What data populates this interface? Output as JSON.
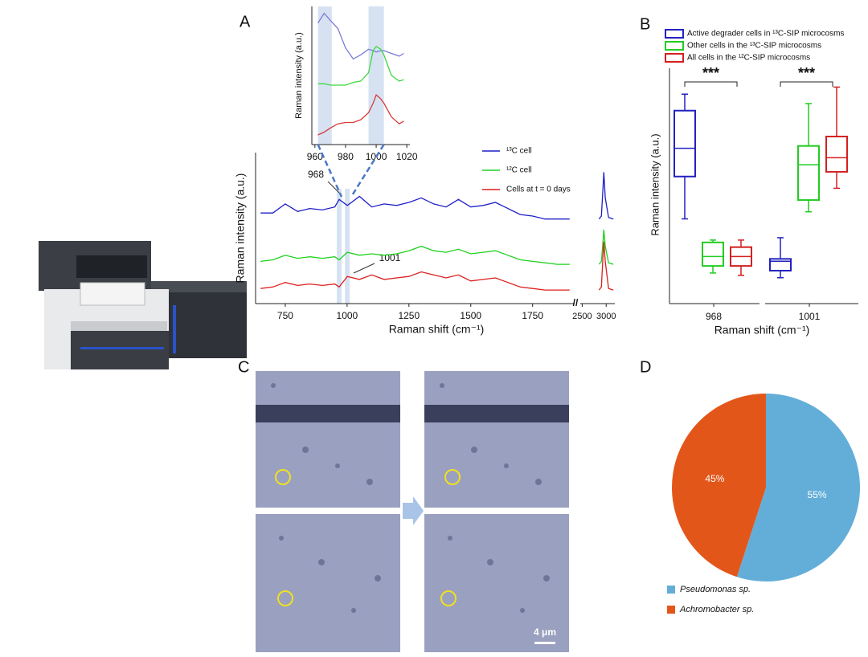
{
  "panels": [
    "A",
    "B",
    "C",
    "D"
  ],
  "scale_bar": "4 μm",
  "chart_data": [
    {
      "type": "line",
      "x_label": "Raman shift (cm⁻¹)",
      "y_label": "Raman intensity (a.u.)",
      "x": [
        650,
        700,
        750,
        800,
        850,
        900,
        950,
        968,
        1001,
        1050,
        1100,
        1150,
        1200,
        1250,
        1300,
        1350,
        1400,
        1450,
        1500,
        1550,
        1600,
        1650,
        1700,
        1750,
        1800,
        1850,
        1900
      ],
      "xlim": [
        630,
        1920
      ],
      "xticks": [
        750,
        1000,
        1250,
        1500,
        1750
      ],
      "ylim": [
        0,
        10
      ],
      "series": [
        {
          "name": "¹³C cell",
          "color": "#1f1fc8",
          "values": [
            6.0,
            6.0,
            6.6,
            6.1,
            6.3,
            6.2,
            6.4,
            6.9,
            6.5,
            7.1,
            6.4,
            6.6,
            6.5,
            6.7,
            7.0,
            6.6,
            6.4,
            6.9,
            6.4,
            6.5,
            6.7,
            6.3,
            5.9,
            5.8,
            5.6,
            5.6,
            5.6
          ]
        },
        {
          "name": "¹²C cell",
          "color": "#1ed21e",
          "values": [
            2.8,
            2.9,
            3.2,
            3.0,
            3.1,
            3.0,
            3.1,
            2.9,
            3.4,
            3.2,
            3.3,
            3.2,
            3.3,
            3.5,
            3.8,
            3.5,
            3.4,
            3.6,
            3.3,
            3.4,
            3.5,
            3.2,
            2.9,
            2.8,
            2.7,
            2.6,
            2.6
          ]
        },
        {
          "name": "Cells at t = 0 days",
          "color": "#dc1e1e",
          "values": [
            1.0,
            1.1,
            1.4,
            1.2,
            1.3,
            1.2,
            1.3,
            1.1,
            1.8,
            1.6,
            1.9,
            1.6,
            1.7,
            1.8,
            2.1,
            1.9,
            1.7,
            1.9,
            1.5,
            1.6,
            1.7,
            1.4,
            1.1,
            1.0,
            0.9,
            0.9,
            0.9
          ]
        }
      ],
      "annotations": [
        {
          "x": 968,
          "text": "968"
        },
        {
          "x": 1001,
          "text": "1001"
        }
      ]
    },
    {
      "type": "line",
      "x": [
        2850,
        2900,
        2930,
        2950,
        2980,
        3050,
        3150
      ],
      "xlim": [
        2460,
        3180
      ],
      "xticks": [
        2500,
        3000
      ],
      "ylim": [
        0,
        10
      ],
      "series": [
        {
          "color": "#1f1fc8",
          "values": [
            5.6,
            5.8,
            7.5,
            8.7,
            7.0,
            5.7,
            5.6
          ]
        },
        {
          "color": "#1ed21e",
          "values": [
            2.6,
            2.8,
            4.0,
            4.9,
            3.8,
            2.7,
            2.6
          ]
        },
        {
          "color": "#dc1e1e",
          "values": [
            0.9,
            1.1,
            3.0,
            4.1,
            2.8,
            1.0,
            0.9
          ]
        }
      ]
    },
    {
      "type": "line",
      "y_label": "Raman intensity (a.u.)",
      "x": [
        962,
        966,
        970,
        975,
        980,
        985,
        990,
        995,
        998,
        1000,
        1003,
        1005,
        1010,
        1015,
        1018
      ],
      "xlim": [
        958,
        1022
      ],
      "xticks": [
        960,
        980,
        1000,
        1020
      ],
      "ylim": [
        0,
        10
      ],
      "highlight": [
        [
          962,
          971
        ],
        [
          995,
          1005
        ]
      ],
      "series": [
        {
          "color": "#7b7bd6",
          "values": [
            8.8,
            9.5,
            9.0,
            8.4,
            7.0,
            6.2,
            6.5,
            6.9,
            6.8,
            6.7,
            6.8,
            6.8,
            6.6,
            6.4,
            6.6
          ]
        },
        {
          "color": "#3fd83f",
          "values": [
            4.4,
            4.4,
            4.3,
            4.3,
            4.3,
            4.5,
            4.6,
            5.2,
            6.8,
            7.1,
            6.9,
            6.5,
            5.0,
            4.6,
            4.7
          ]
        },
        {
          "color": "#d83a3a",
          "values": [
            0.7,
            0.9,
            1.2,
            1.5,
            1.6,
            1.6,
            1.8,
            2.3,
            3.0,
            3.6,
            3.3,
            3.0,
            2.0,
            1.5,
            1.7
          ]
        }
      ]
    },
    {
      "type": "box",
      "x_label": "Raman shift (cm⁻¹)",
      "y_label": "Raman intensity (a.u.)",
      "categories": [
        "968",
        "1001"
      ],
      "ylim": [
        0,
        10
      ],
      "significance": [
        "***",
        "***"
      ],
      "series": [
        {
          "name": "Active degrader cells in ¹³C-SIP microcosms",
          "color": "#2222c0",
          "min": [
            3.6,
            1.1
          ],
          "q1": [
            5.4,
            1.4
          ],
          "median": [
            6.6,
            1.8
          ],
          "q3": [
            8.2,
            1.9
          ],
          "max": [
            8.9,
            2.8
          ]
        },
        {
          "name": "Other cells in the ¹³C-SIP microcosms",
          "color": "#22cc22",
          "min": [
            1.3,
            3.9
          ],
          "q1": [
            1.6,
            4.4
          ],
          "median": [
            2.0,
            5.9
          ],
          "q3": [
            2.6,
            6.7
          ],
          "max": [
            2.7,
            8.5
          ]
        },
        {
          "name": "All cells in the ¹²C-SIP microcosms",
          "color": "#d42020",
          "min": [
            1.2,
            4.9
          ],
          "q1": [
            1.6,
            5.6
          ],
          "median": [
            2.0,
            6.2
          ],
          "q3": [
            2.4,
            7.1
          ],
          "max": [
            2.7,
            9.2
          ]
        }
      ]
    },
    {
      "type": "pie",
      "categories": [
        "Pseudomonas sp.",
        "Achromobacter sp."
      ],
      "values": [
        55,
        45
      ],
      "value_labels": [
        "55%",
        "45%"
      ],
      "colors": [
        "#63aed8",
        "#e3561a"
      ]
    }
  ]
}
